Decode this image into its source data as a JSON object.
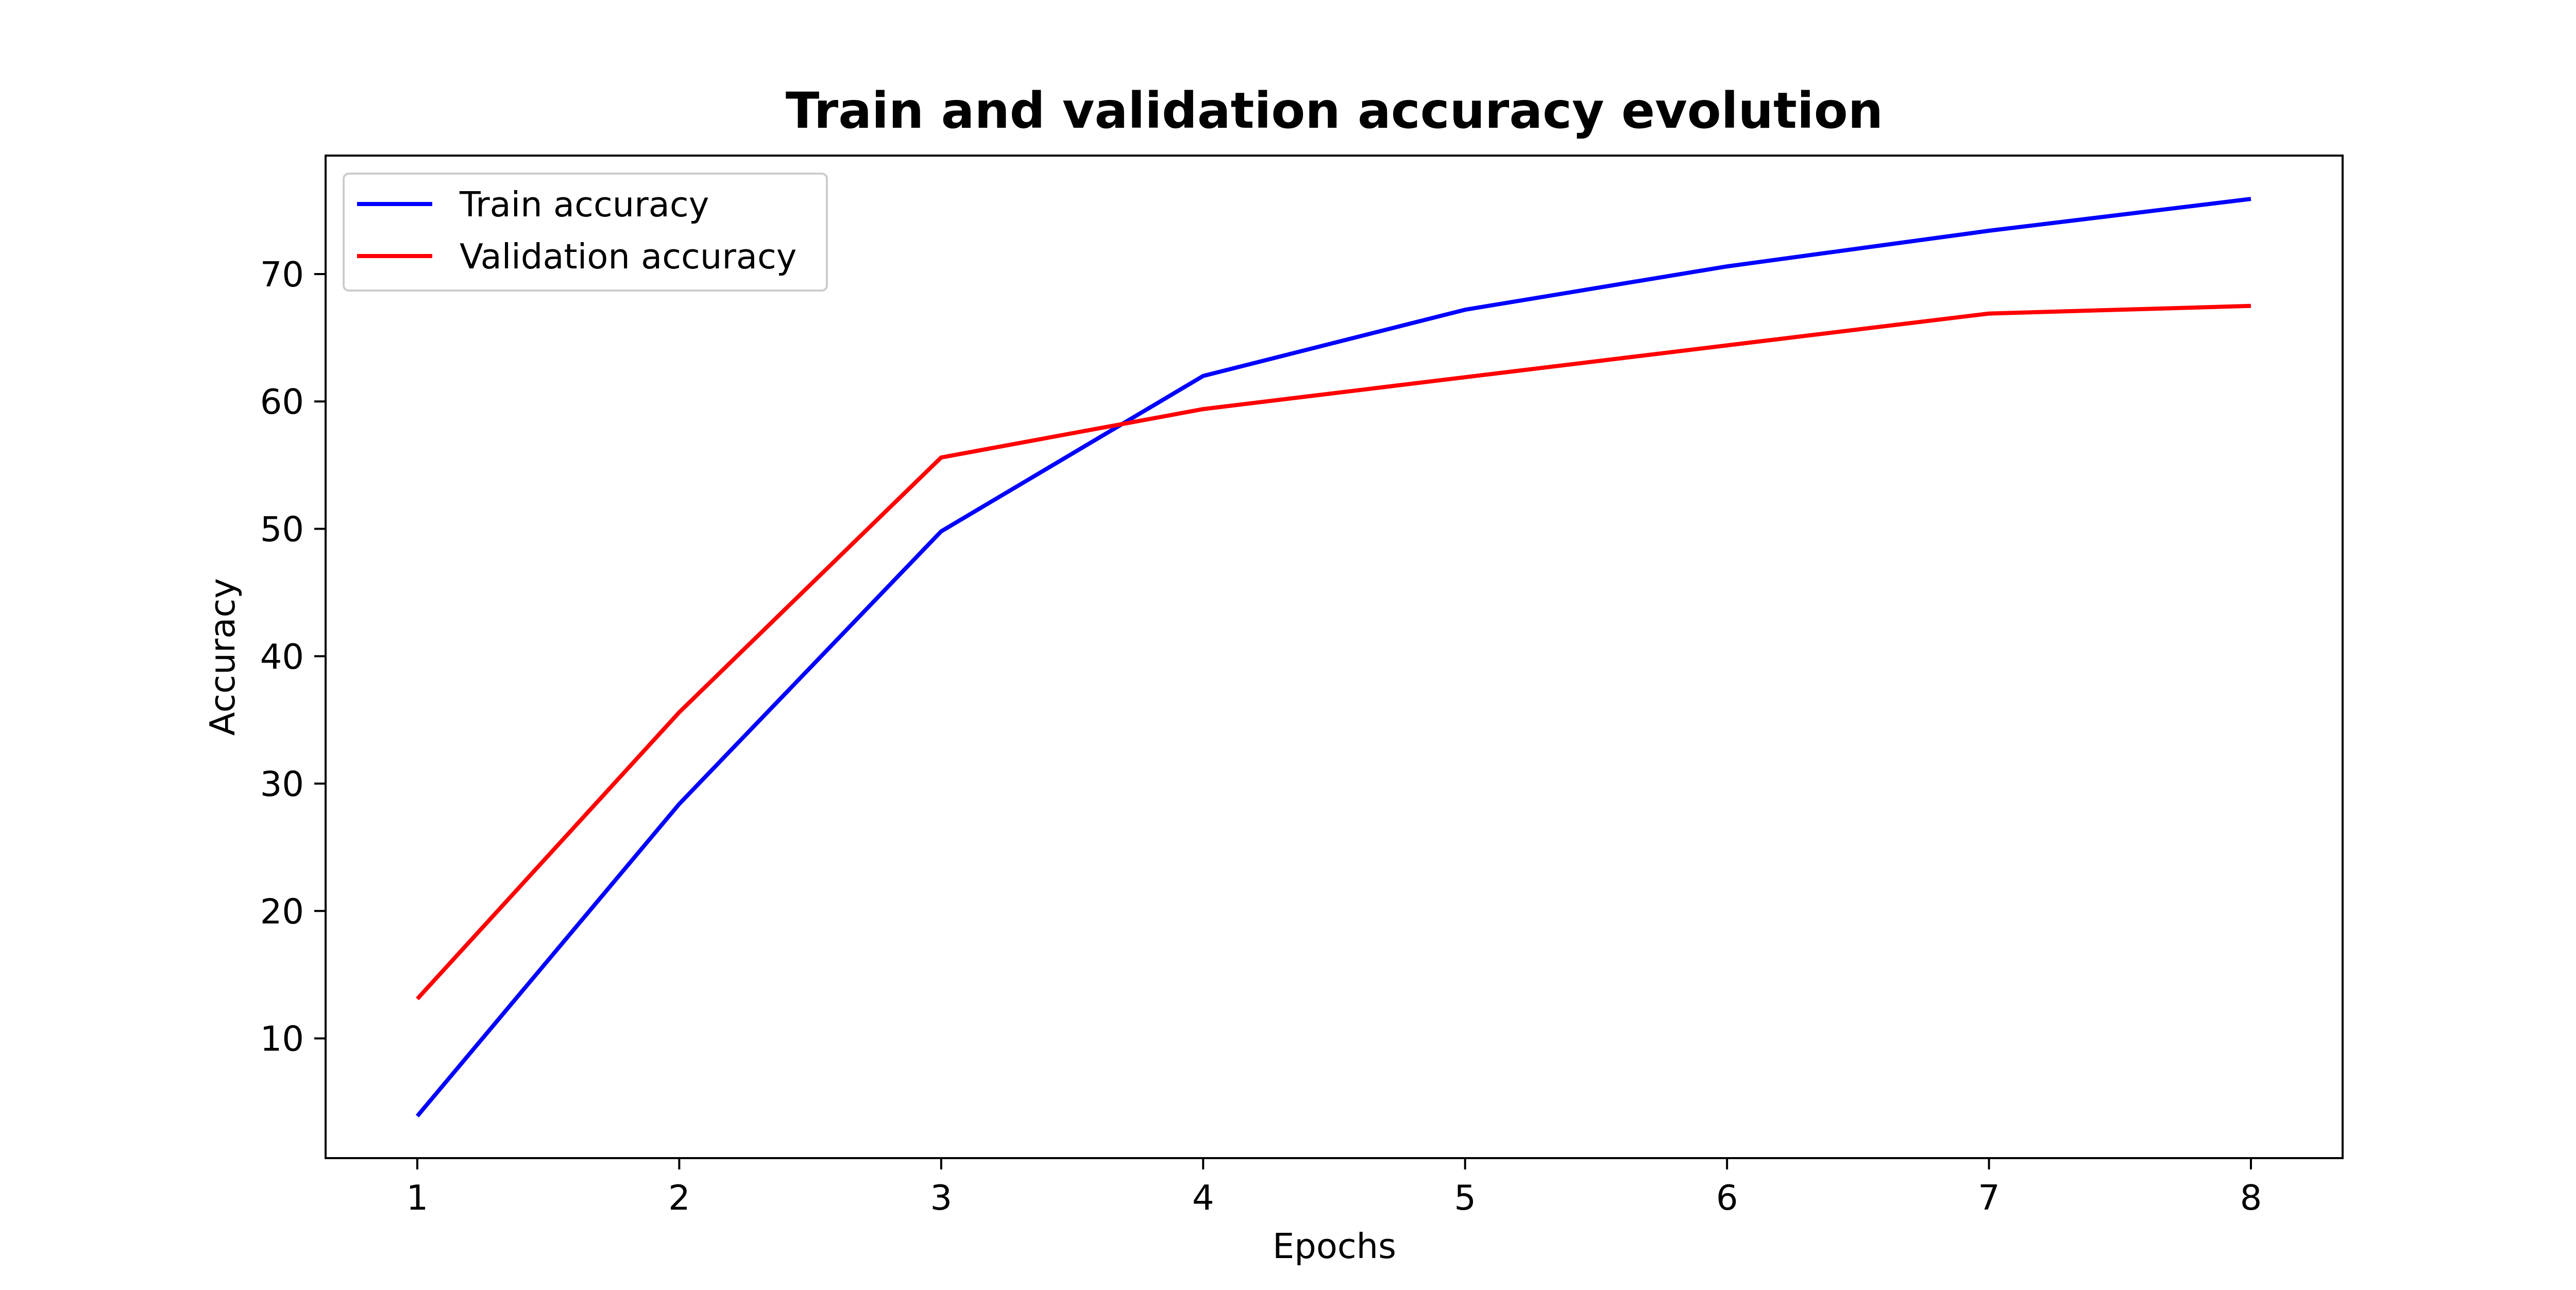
{
  "chart_data": {
    "type": "line",
    "title": "Train and validation accuracy evolution",
    "xlabel": "Epochs",
    "ylabel": "Accuracy",
    "x": [
      1,
      2,
      3,
      4,
      5,
      6,
      7,
      8
    ],
    "xlim": [
      0.65,
      8.35
    ],
    "ylim": [
      0.6,
      79.3
    ],
    "xticks": [
      1,
      2,
      3,
      4,
      5,
      6,
      7,
      8
    ],
    "yticks": [
      10,
      20,
      30,
      40,
      50,
      60,
      70
    ],
    "grid": false,
    "legend_position": "upper-left",
    "series": [
      {
        "name": "Train accuracy",
        "color": "#0000ff",
        "values": [
          3.9,
          28.4,
          49.8,
          62.0,
          67.2,
          70.6,
          73.4,
          75.9
        ]
      },
      {
        "name": "Validation accuracy",
        "color": "#ff0000",
        "values": [
          13.1,
          35.6,
          55.6,
          59.4,
          61.9,
          64.4,
          66.9,
          67.5
        ]
      }
    ]
  }
}
